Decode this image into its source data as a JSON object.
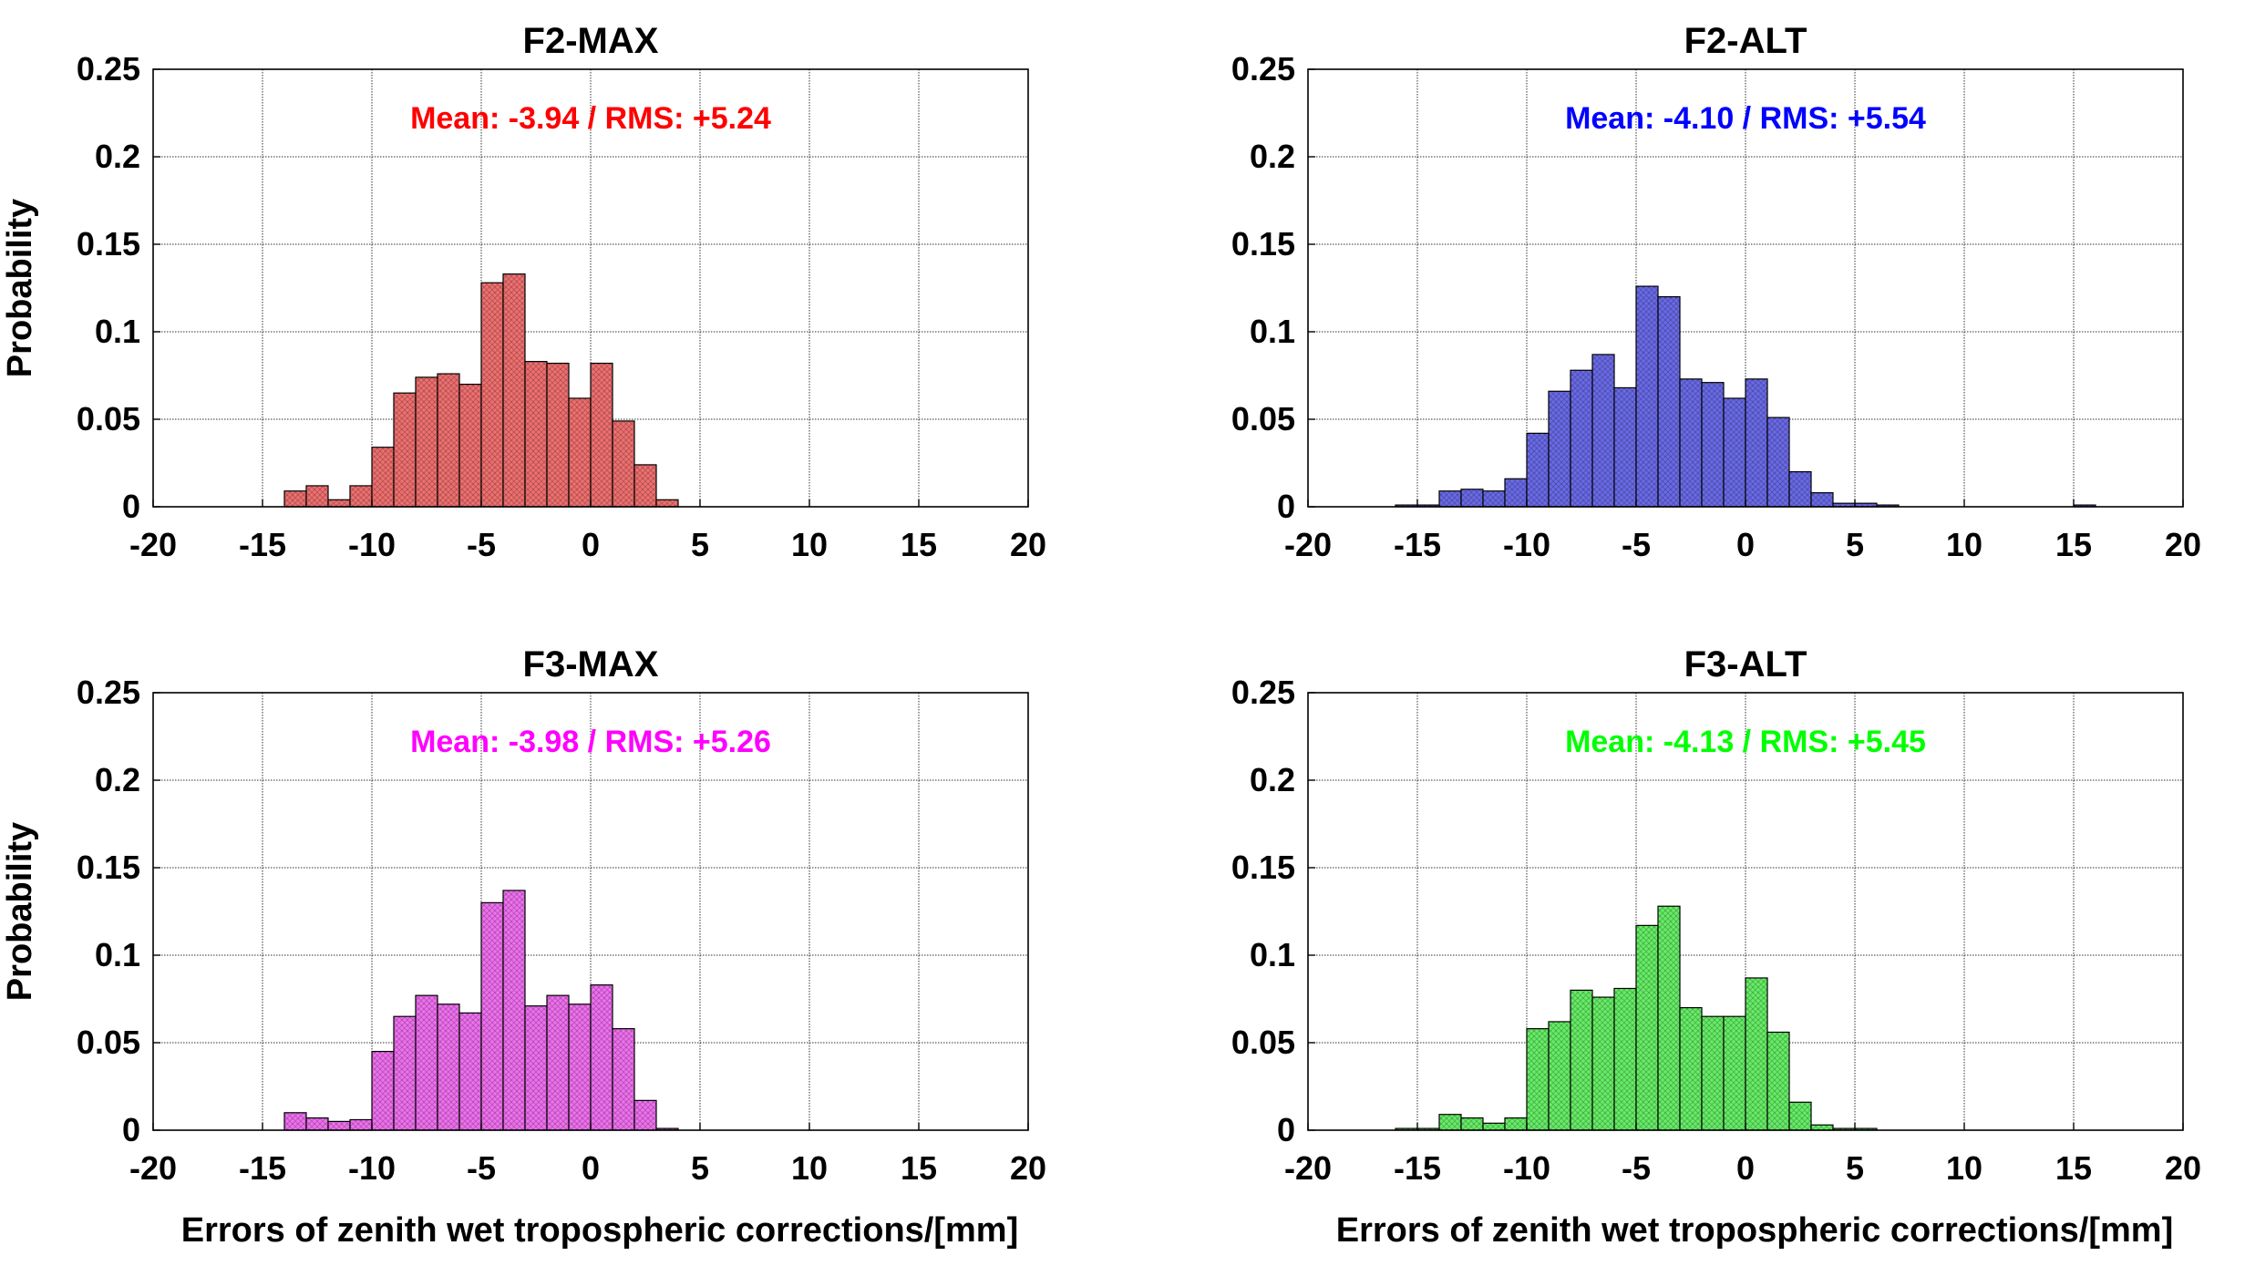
{
  "chart_data": [
    {
      "type": "bar",
      "title": "F2-MAX",
      "annotation": "Mean: -3.94 / RMS: +5.24",
      "color": "#ff0000",
      "fill": "#f07070",
      "xlabel": "",
      "ylabel": "Probability",
      "xlim": [
        -20,
        20
      ],
      "ylim": [
        0,
        0.25
      ],
      "grid": true,
      "bin_width": 1,
      "bin_starts": [
        -14,
        -13,
        -12,
        -11,
        -10,
        -9,
        -8,
        -7,
        -6,
        -5,
        -4,
        -3,
        -2,
        -1,
        0,
        1,
        2,
        3
      ],
      "values": [
        0.009,
        0.012,
        0.004,
        0.012,
        0.034,
        0.065,
        0.074,
        0.076,
        0.07,
        0.128,
        0.133,
        0.083,
        0.082,
        0.062,
        0.082,
        0.049,
        0.024,
        0.004
      ],
      "xticks": [
        "-20",
        "-15",
        "-10",
        "-5",
        "0",
        "5",
        "10",
        "15",
        "20"
      ],
      "yticks": [
        "0",
        "0.05",
        "0.1",
        "0.15",
        "0.2",
        "0.25"
      ]
    },
    {
      "type": "bar",
      "title": "F2-ALT",
      "annotation": "Mean: -4.10 / RMS: +5.54",
      "color": "#0000ff",
      "fill": "#6a6ae8",
      "xlabel": "",
      "ylabel": "",
      "xlim": [
        -20,
        20
      ],
      "ylim": [
        0,
        0.25
      ],
      "grid": true,
      "bin_width": 1,
      "bin_starts": [
        -16,
        -15,
        -14,
        -13,
        -12,
        -11,
        -10,
        -9,
        -8,
        -7,
        -6,
        -5,
        -4,
        -3,
        -2,
        -1,
        0,
        1,
        2,
        3,
        4,
        5,
        6,
        15
      ],
      "values": [
        0.001,
        0.001,
        0.009,
        0.01,
        0.009,
        0.016,
        0.042,
        0.066,
        0.078,
        0.087,
        0.068,
        0.126,
        0.12,
        0.073,
        0.071,
        0.062,
        0.073,
        0.051,
        0.02,
        0.008,
        0.002,
        0.002,
        0.001,
        0.001
      ],
      "xticks": [
        "-20",
        "-15",
        "-10",
        "-5",
        "0",
        "5",
        "10",
        "15",
        "20"
      ],
      "yticks": [
        "0",
        "0.05",
        "0.1",
        "0.15",
        "0.2",
        "0.25"
      ]
    },
    {
      "type": "bar",
      "title": "F3-MAX",
      "annotation": "Mean: -3.98 / RMS: +5.26",
      "color": "#ff00ff",
      "fill": "#f070f0",
      "xlabel": "Errors of zenith wet tropospheric corrections/[mm]",
      "ylabel": "Probability",
      "xlim": [
        -20,
        20
      ],
      "ylim": [
        0,
        0.25
      ],
      "grid": true,
      "bin_width": 1,
      "bin_starts": [
        -14,
        -13,
        -12,
        -11,
        -10,
        -9,
        -8,
        -7,
        -6,
        -5,
        -4,
        -3,
        -2,
        -1,
        0,
        1,
        2,
        3
      ],
      "values": [
        0.01,
        0.007,
        0.005,
        0.006,
        0.045,
        0.065,
        0.077,
        0.072,
        0.067,
        0.13,
        0.137,
        0.071,
        0.077,
        0.072,
        0.083,
        0.058,
        0.017,
        0.001
      ],
      "xticks": [
        "-20",
        "-15",
        "-10",
        "-5",
        "0",
        "5",
        "10",
        "15",
        "20"
      ],
      "yticks": [
        "0",
        "0.05",
        "0.1",
        "0.15",
        "0.2",
        "0.25"
      ]
    },
    {
      "type": "bar",
      "title": "F3-ALT",
      "annotation": "Mean: -4.13 / RMS: +5.45",
      "color": "#00ff00",
      "fill": "#66ee66",
      "xlabel": "Errors of zenith wet tropospheric corrections/[mm]",
      "ylabel": "",
      "xlim": [
        -20,
        20
      ],
      "ylim": [
        0,
        0.25
      ],
      "grid": true,
      "bin_width": 1,
      "bin_starts": [
        -16,
        -15,
        -14,
        -13,
        -12,
        -11,
        -10,
        -9,
        -8,
        -7,
        -6,
        -5,
        -4,
        -3,
        -2,
        -1,
        0,
        1,
        2,
        3,
        4,
        5
      ],
      "values": [
        0.001,
        0.001,
        0.009,
        0.007,
        0.004,
        0.007,
        0.058,
        0.062,
        0.08,
        0.076,
        0.081,
        0.117,
        0.128,
        0.07,
        0.065,
        0.065,
        0.087,
        0.056,
        0.016,
        0.003,
        0.001,
        0.001
      ],
      "xticks": [
        "-20",
        "-15",
        "-10",
        "-5",
        "0",
        "5",
        "10",
        "15",
        "20"
      ],
      "yticks": [
        "0",
        "0.05",
        "0.1",
        "0.15",
        "0.2",
        "0.25"
      ]
    }
  ]
}
